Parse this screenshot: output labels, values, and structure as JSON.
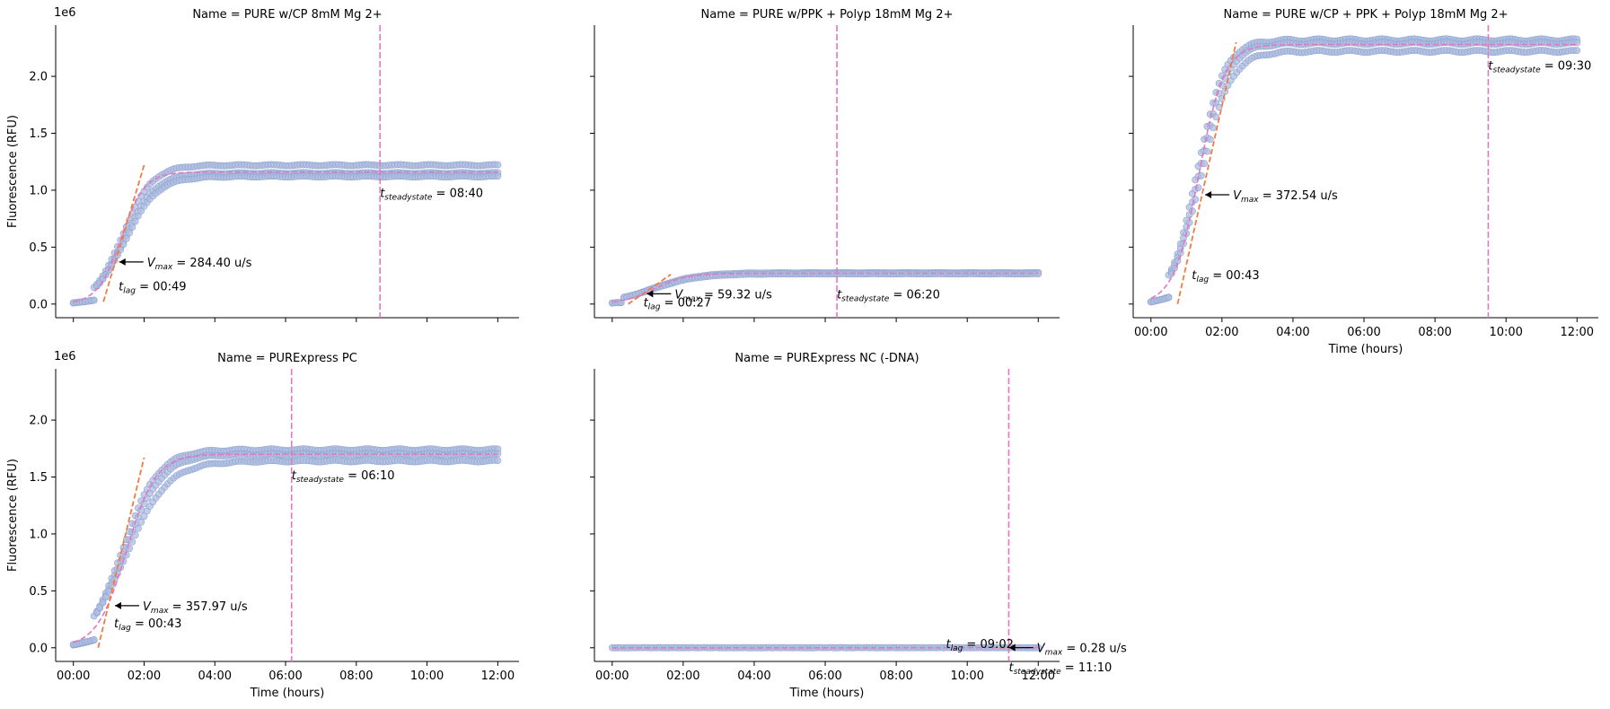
{
  "figure": {
    "y_axis_label": "Fluorescence (RFU)",
    "x_axis_label": "Time (hours)",
    "y_offset_label": "1e6",
    "colors": {
      "points_fill": "#aebee0",
      "points_edge": "#8fa3cf",
      "fit_curve": "#e377c2",
      "vmax_line": "#f07c43",
      "steady_line": "#e377c2",
      "axis": "#000000"
    },
    "grid": false
  },
  "chart_data": [
    {
      "type": "scatter",
      "title": "Name = PURE w/CP 8mM Mg 2+",
      "xlabel": "",
      "ylabel": "Fluorescence (RFU)",
      "xlim": [
        -0.5,
        12.6
      ],
      "ylim": [
        -0.12,
        2.45
      ],
      "x_ticks": [
        "00:00",
        "02:00",
        "04:00",
        "06:00",
        "08:00",
        "10:00",
        "12:00"
      ],
      "y_ticks": [
        "0.0",
        "0.5",
        "1.0",
        "1.5",
        "2.0"
      ],
      "replicates": [
        {
          "plateau": 1.22,
          "onset": 0.55,
          "rate": 2.4
        },
        {
          "plateau": 1.15,
          "onset": 0.6,
          "rate": 2.3
        },
        {
          "plateau": 1.12,
          "onset": 0.62,
          "rate": 2.2
        }
      ],
      "fit_curve": {
        "plateau": 1.16,
        "midpoint": 1.35,
        "steepness": 3.0
      },
      "vmax_tangent": {
        "x": [
          0.85,
          2.0
        ],
        "y": [
          0.02,
          1.22
        ]
      },
      "vmax_point": {
        "x": 1.22,
        "y": 0.37
      },
      "vmax_label": {
        "prefix": "V",
        "sub": "max",
        "value": "=  284.40 u/s"
      },
      "tlag_label": {
        "prefix": "t",
        "sub": "lag",
        "value": "=  00:49",
        "x": 1.28,
        "y": 0.12
      },
      "steady_x": 8.67,
      "steady_label": {
        "prefix": "t",
        "sub": "steadystate",
        "value": "=  08:40"
      }
    },
    {
      "type": "scatter",
      "title": "Name = PURE w/PPK + Polyp 18mM Mg 2+",
      "xlabel": "",
      "ylabel": "",
      "xlim": [
        -0.5,
        12.6
      ],
      "ylim": [
        -0.12,
        2.45
      ],
      "x_ticks": [
        "00:00",
        "02:00",
        "04:00",
        "06:00",
        "08:00",
        "10:00",
        "12:00"
      ],
      "y_ticks": [
        "0.0",
        "0.5",
        "1.0",
        "1.5",
        "2.0"
      ],
      "replicates": [
        {
          "plateau": 0.275,
          "onset": 0.3,
          "rate": 1.6
        },
        {
          "plateau": 0.265,
          "onset": 0.3,
          "rate": 1.55
        }
      ],
      "fit_curve": {
        "plateau": 0.27,
        "midpoint": 1.2,
        "steepness": 2.2
      },
      "vmax_tangent": {
        "x": [
          0.45,
          1.65
        ],
        "y": [
          0.0,
          0.26
        ]
      },
      "vmax_point": {
        "x": 0.9,
        "y": 0.09
      },
      "vmax_label": {
        "prefix": "V",
        "sub": "max",
        "value": "=  59.32 u/s"
      },
      "tlag_label": {
        "prefix": "t",
        "sub": "lag",
        "value": "=  00:27",
        "x": 0.88,
        "y": -0.02
      },
      "steady_x": 6.33,
      "steady_label": {
        "prefix": "t",
        "sub": "steadystate",
        "value": "=  06:20"
      }
    },
    {
      "type": "scatter",
      "title": "Name = PURE w/CP + PPK + Polyp 18mM Mg 2+",
      "xlabel": "Time (hours)",
      "ylabel": "",
      "xlim": [
        -0.5,
        12.6
      ],
      "ylim": [
        -0.12,
        2.45
      ],
      "x_ticks": [
        "00:00",
        "02:00",
        "04:00",
        "06:00",
        "08:00",
        "10:00",
        "12:00"
      ],
      "y_ticks": [
        "0.0",
        "0.5",
        "1.0",
        "1.5",
        "2.0"
      ],
      "replicates": [
        {
          "plateau": 2.32,
          "onset": 0.45,
          "rate": 2.6
        },
        {
          "plateau": 2.29,
          "onset": 0.5,
          "rate": 2.5
        },
        {
          "plateau": 2.22,
          "onset": 0.55,
          "rate": 2.4
        }
      ],
      "fit_curve": {
        "plateau": 2.28,
        "midpoint": 1.35,
        "steepness": 2.8
      },
      "vmax_tangent": {
        "x": [
          0.75,
          2.4
        ],
        "y": [
          0.0,
          2.3
        ]
      },
      "vmax_point": {
        "x": 1.45,
        "y": 0.96
      },
      "vmax_label": {
        "prefix": "V",
        "sub": "max",
        "value": "=  372.54 u/s"
      },
      "tlag_label": {
        "prefix": "t",
        "sub": "lag",
        "value": "=  00:43",
        "x": 1.15,
        "y": 0.22
      },
      "steady_x": 9.5,
      "steady_label": {
        "prefix": "t",
        "sub": "steadystate",
        "value": "=  09:30"
      }
    },
    {
      "type": "scatter",
      "title": "Name = PURExpress PC",
      "xlabel": "Time (hours)",
      "ylabel": "Fluorescence (RFU)",
      "xlim": [
        -0.5,
        12.6
      ],
      "ylim": [
        -0.12,
        2.45
      ],
      "x_ticks": [
        "00:00",
        "02:00",
        "04:00",
        "06:00",
        "08:00",
        "10:00",
        "12:00"
      ],
      "y_ticks": [
        "0.0",
        "0.5",
        "1.0",
        "1.5",
        "2.0"
      ],
      "replicates": [
        {
          "plateau": 1.74,
          "onset": 0.55,
          "rate": 2.0
        },
        {
          "plateau": 1.7,
          "onset": 0.6,
          "rate": 1.9
        },
        {
          "plateau": 1.64,
          "onset": 0.65,
          "rate": 1.7
        }
      ],
      "fit_curve": {
        "plateau": 1.7,
        "midpoint": 1.5,
        "steepness": 2.4
      },
      "vmax_tangent": {
        "x": [
          0.7,
          2.0
        ],
        "y": [
          0.0,
          1.67
        ]
      },
      "vmax_point": {
        "x": 1.1,
        "y": 0.37
      },
      "vmax_label": {
        "prefix": "V",
        "sub": "max",
        "value": "=  357.97 u/s"
      },
      "tlag_label": {
        "prefix": "t",
        "sub": "lag",
        "value": "=  00:43",
        "x": 1.15,
        "y": 0.18
      },
      "steady_x": 6.17,
      "steady_label": {
        "prefix": "t",
        "sub": "steadystate",
        "value": "=  06:10"
      }
    },
    {
      "type": "scatter",
      "title": "Name = PURExpress NC (-DNA)",
      "xlabel": "Time (hours)",
      "ylabel": "",
      "xlim": [
        -0.5,
        12.6
      ],
      "ylim": [
        -0.12,
        2.45
      ],
      "x_ticks": [
        "00:00",
        "02:00",
        "04:00",
        "06:00",
        "08:00",
        "10:00",
        "12:00"
      ],
      "y_ticks": [
        "0.0",
        "0.5",
        "1.0",
        "1.5",
        "2.0"
      ],
      "replicates": [
        {
          "plateau": 0.002,
          "onset": 9.0,
          "rate": 1.0
        }
      ],
      "fit_curve": {
        "plateau": 0.002,
        "midpoint": 10.0,
        "steepness": 1.0
      },
      "vmax_tangent": {
        "x": [
          10.9,
          11.4
        ],
        "y": [
          0.0,
          0.004
        ]
      },
      "vmax_point": {
        "x": 11.1,
        "y": 0.001
      },
      "vmax_label": {
        "prefix": "V",
        "sub": "max",
        "value": "=  0.28 u/s"
      },
      "tlag_label": {
        "prefix": "t",
        "sub": "lag",
        "value": "=  09:02",
        "x": 9.4,
        "y": 0.0
      },
      "steady_x": 11.17,
      "steady_label": {
        "prefix": "t",
        "sub": "steadystate",
        "value": "=  11:10"
      }
    }
  ]
}
